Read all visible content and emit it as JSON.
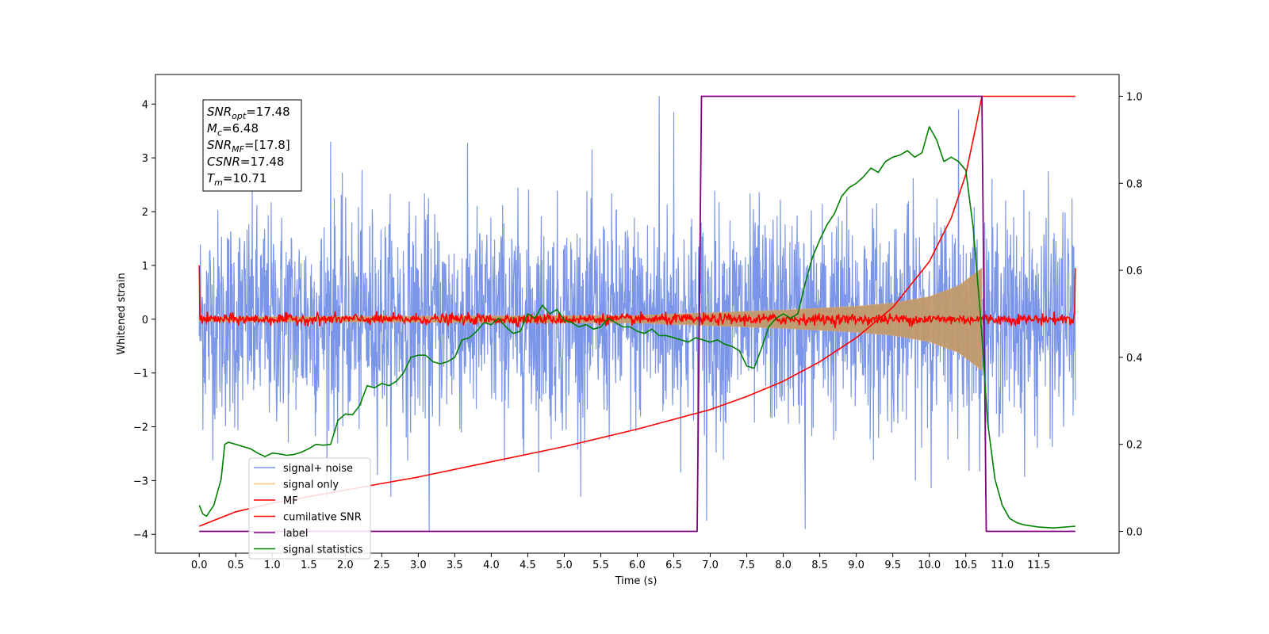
{
  "chart_data": {
    "type": "line",
    "title": "",
    "xlabel": "Time (s)",
    "ylabel": "Whitened strain",
    "y2label": "",
    "xlim": [
      -0.6,
      12.6
    ],
    "ylim": [
      -4.35,
      4.55
    ],
    "y2lim": [
      -0.05,
      1.05
    ],
    "x_ticks": [
      "0.0",
      "0.5",
      "1.0",
      "1.5",
      "2.0",
      "2.5",
      "3.0",
      "3.5",
      "4.0",
      "4.5",
      "5.0",
      "5.5",
      "6.0",
      "6.5",
      "7.0",
      "7.5",
      "8.0",
      "8.5",
      "9.0",
      "9.5",
      "10.0",
      "10.5",
      "11.0",
      "11.5"
    ],
    "y_ticks": [
      "4",
      "3",
      "2",
      "1",
      "0",
      "−1",
      "−2",
      "−3",
      "−4"
    ],
    "y2_ticks": [
      "1.0",
      "0.8",
      "0.6",
      "0.4",
      "0.2",
      "0.0"
    ],
    "grid": false,
    "legend_position": "lower-left",
    "annotation": {
      "lines": [
        {
          "base": "SNR",
          "sub": "opt",
          "value": "=17.48"
        },
        {
          "base": "M",
          "sub": "c",
          "value": "=6.48"
        },
        {
          "base": "SNR",
          "sub": "MF",
          "value": "=[17.8]"
        },
        {
          "base": "CSNR",
          "sub": "",
          "value": "=17.48"
        },
        {
          "base": "T",
          "sub": "m",
          "value": "=10.71"
        }
      ]
    },
    "series": [
      {
        "name": "signal+ noise",
        "color": "#7b96e8",
        "axis": "left",
        "x_range": [
          0.0,
          12.0
        ],
        "noise_sigma": 1.0,
        "peaks": [
          [
            6.3,
            4.15
          ],
          [
            6.5,
            3.85
          ],
          [
            10.4,
            3.9
          ],
          [
            1.8,
            3.3
          ],
          [
            8.3,
            -3.9
          ],
          [
            3.15,
            -3.95
          ],
          [
            6.95,
            -3.75
          ]
        ]
      },
      {
        "name": "signal only",
        "color": "#e0a868",
        "axis": "left",
        "x_range": [
          0.0,
          10.72
        ],
        "envelope": [
          [
            0.0,
            0.04
          ],
          [
            6.0,
            0.07
          ],
          [
            7.0,
            0.12
          ],
          [
            8.0,
            0.17
          ],
          [
            9.0,
            0.24
          ],
          [
            9.5,
            0.3
          ],
          [
            10.0,
            0.42
          ],
          [
            10.4,
            0.62
          ],
          [
            10.72,
            0.95
          ]
        ]
      },
      {
        "name": "MF",
        "color": "#ff0000",
        "axis": "left",
        "x_range": [
          0.0,
          12.0
        ],
        "noise_sigma": 0.05,
        "edge_values": [
          1.0,
          0.95
        ]
      },
      {
        "name": "cumilative SNR",
        "color": "#ff0000",
        "axis": "right",
        "points": [
          [
            0.0,
            0.012
          ],
          [
            0.5,
            0.045
          ],
          [
            1.0,
            0.065
          ],
          [
            2.0,
            0.095
          ],
          [
            3.0,
            0.125
          ],
          [
            4.0,
            0.16
          ],
          [
            5.0,
            0.195
          ],
          [
            6.0,
            0.235
          ],
          [
            7.0,
            0.28
          ],
          [
            7.5,
            0.31
          ],
          [
            8.0,
            0.345
          ],
          [
            8.5,
            0.39
          ],
          [
            9.0,
            0.445
          ],
          [
            9.5,
            0.515
          ],
          [
            10.0,
            0.62
          ],
          [
            10.3,
            0.72
          ],
          [
            10.5,
            0.82
          ],
          [
            10.65,
            0.94
          ],
          [
            10.72,
            1.0
          ],
          [
            12.0,
            1.0
          ]
        ]
      },
      {
        "name": "label",
        "color": "#800080",
        "axis": "right",
        "points": [
          [
            0.0,
            0.0
          ],
          [
            6.82,
            0.0
          ],
          [
            6.88,
            1.0
          ],
          [
            10.72,
            1.0
          ],
          [
            10.78,
            0.0
          ],
          [
            12.0,
            0.0
          ]
        ]
      },
      {
        "name": "signal statistics",
        "color": "#008000",
        "axis": "right",
        "points": [
          [
            0.0,
            0.06
          ],
          [
            0.05,
            0.04
          ],
          [
            0.1,
            0.035
          ],
          [
            0.2,
            0.06
          ],
          [
            0.3,
            0.12
          ],
          [
            0.35,
            0.2
          ],
          [
            0.4,
            0.205
          ],
          [
            0.5,
            0.2
          ],
          [
            0.6,
            0.195
          ],
          [
            0.7,
            0.19
          ],
          [
            0.8,
            0.18
          ],
          [
            0.9,
            0.172
          ],
          [
            1.0,
            0.18
          ],
          [
            1.1,
            0.178
          ],
          [
            1.2,
            0.175
          ],
          [
            1.3,
            0.177
          ],
          [
            1.4,
            0.182
          ],
          [
            1.5,
            0.19
          ],
          [
            1.6,
            0.2
          ],
          [
            1.7,
            0.198
          ],
          [
            1.8,
            0.2
          ],
          [
            1.9,
            0.255
          ],
          [
            2.0,
            0.27
          ],
          [
            2.1,
            0.268
          ],
          [
            2.2,
            0.29
          ],
          [
            2.3,
            0.335
          ],
          [
            2.4,
            0.33
          ],
          [
            2.5,
            0.34
          ],
          [
            2.6,
            0.335
          ],
          [
            2.7,
            0.345
          ],
          [
            2.8,
            0.365
          ],
          [
            2.9,
            0.4
          ],
          [
            3.0,
            0.405
          ],
          [
            3.1,
            0.405
          ],
          [
            3.2,
            0.39
          ],
          [
            3.3,
            0.385
          ],
          [
            3.4,
            0.39
          ],
          [
            3.5,
            0.4
          ],
          [
            3.6,
            0.44
          ],
          [
            3.7,
            0.445
          ],
          [
            3.8,
            0.46
          ],
          [
            3.9,
            0.48
          ],
          [
            4.0,
            0.475
          ],
          [
            4.1,
            0.49
          ],
          [
            4.2,
            0.47
          ],
          [
            4.3,
            0.455
          ],
          [
            4.4,
            0.46
          ],
          [
            4.5,
            0.5
          ],
          [
            4.6,
            0.49
          ],
          [
            4.7,
            0.52
          ],
          [
            4.8,
            0.5
          ],
          [
            4.9,
            0.51
          ],
          [
            5.0,
            0.485
          ],
          [
            5.1,
            0.48
          ],
          [
            5.2,
            0.47
          ],
          [
            5.3,
            0.475
          ],
          [
            5.4,
            0.465
          ],
          [
            5.5,
            0.47
          ],
          [
            5.6,
            0.49
          ],
          [
            5.7,
            0.48
          ],
          [
            5.8,
            0.47
          ],
          [
            5.9,
            0.47
          ],
          [
            6.0,
            0.46
          ],
          [
            6.1,
            0.455
          ],
          [
            6.2,
            0.465
          ],
          [
            6.3,
            0.45
          ],
          [
            6.4,
            0.45
          ],
          [
            6.5,
            0.445
          ],
          [
            6.6,
            0.44
          ],
          [
            6.7,
            0.435
          ],
          [
            6.8,
            0.445
          ],
          [
            6.9,
            0.44
          ],
          [
            7.0,
            0.435
          ],
          [
            7.1,
            0.44
          ],
          [
            7.2,
            0.43
          ],
          [
            7.3,
            0.425
          ],
          [
            7.4,
            0.415
          ],
          [
            7.5,
            0.38
          ],
          [
            7.6,
            0.375
          ],
          [
            7.7,
            0.42
          ],
          [
            7.8,
            0.47
          ],
          [
            7.9,
            0.49
          ],
          [
            8.0,
            0.5
          ],
          [
            8.1,
            0.49
          ],
          [
            8.2,
            0.5
          ],
          [
            8.3,
            0.57
          ],
          [
            8.4,
            0.63
          ],
          [
            8.5,
            0.67
          ],
          [
            8.6,
            0.705
          ],
          [
            8.7,
            0.73
          ],
          [
            8.8,
            0.77
          ],
          [
            8.9,
            0.79
          ],
          [
            9.0,
            0.8
          ],
          [
            9.1,
            0.815
          ],
          [
            9.2,
            0.835
          ],
          [
            9.3,
            0.825
          ],
          [
            9.4,
            0.85
          ],
          [
            9.5,
            0.86
          ],
          [
            9.6,
            0.865
          ],
          [
            9.7,
            0.875
          ],
          [
            9.8,
            0.86
          ],
          [
            9.9,
            0.87
          ],
          [
            10.0,
            0.93
          ],
          [
            10.1,
            0.9
          ],
          [
            10.2,
            0.85
          ],
          [
            10.3,
            0.86
          ],
          [
            10.4,
            0.85
          ],
          [
            10.5,
            0.83
          ],
          [
            10.6,
            0.7
          ],
          [
            10.7,
            0.5
          ],
          [
            10.8,
            0.25
          ],
          [
            10.9,
            0.12
          ],
          [
            11.0,
            0.06
          ],
          [
            11.1,
            0.03
          ],
          [
            11.2,
            0.02
          ],
          [
            11.3,
            0.015
          ],
          [
            11.5,
            0.01
          ],
          [
            11.7,
            0.008
          ],
          [
            12.0,
            0.012
          ]
        ]
      }
    ]
  }
}
